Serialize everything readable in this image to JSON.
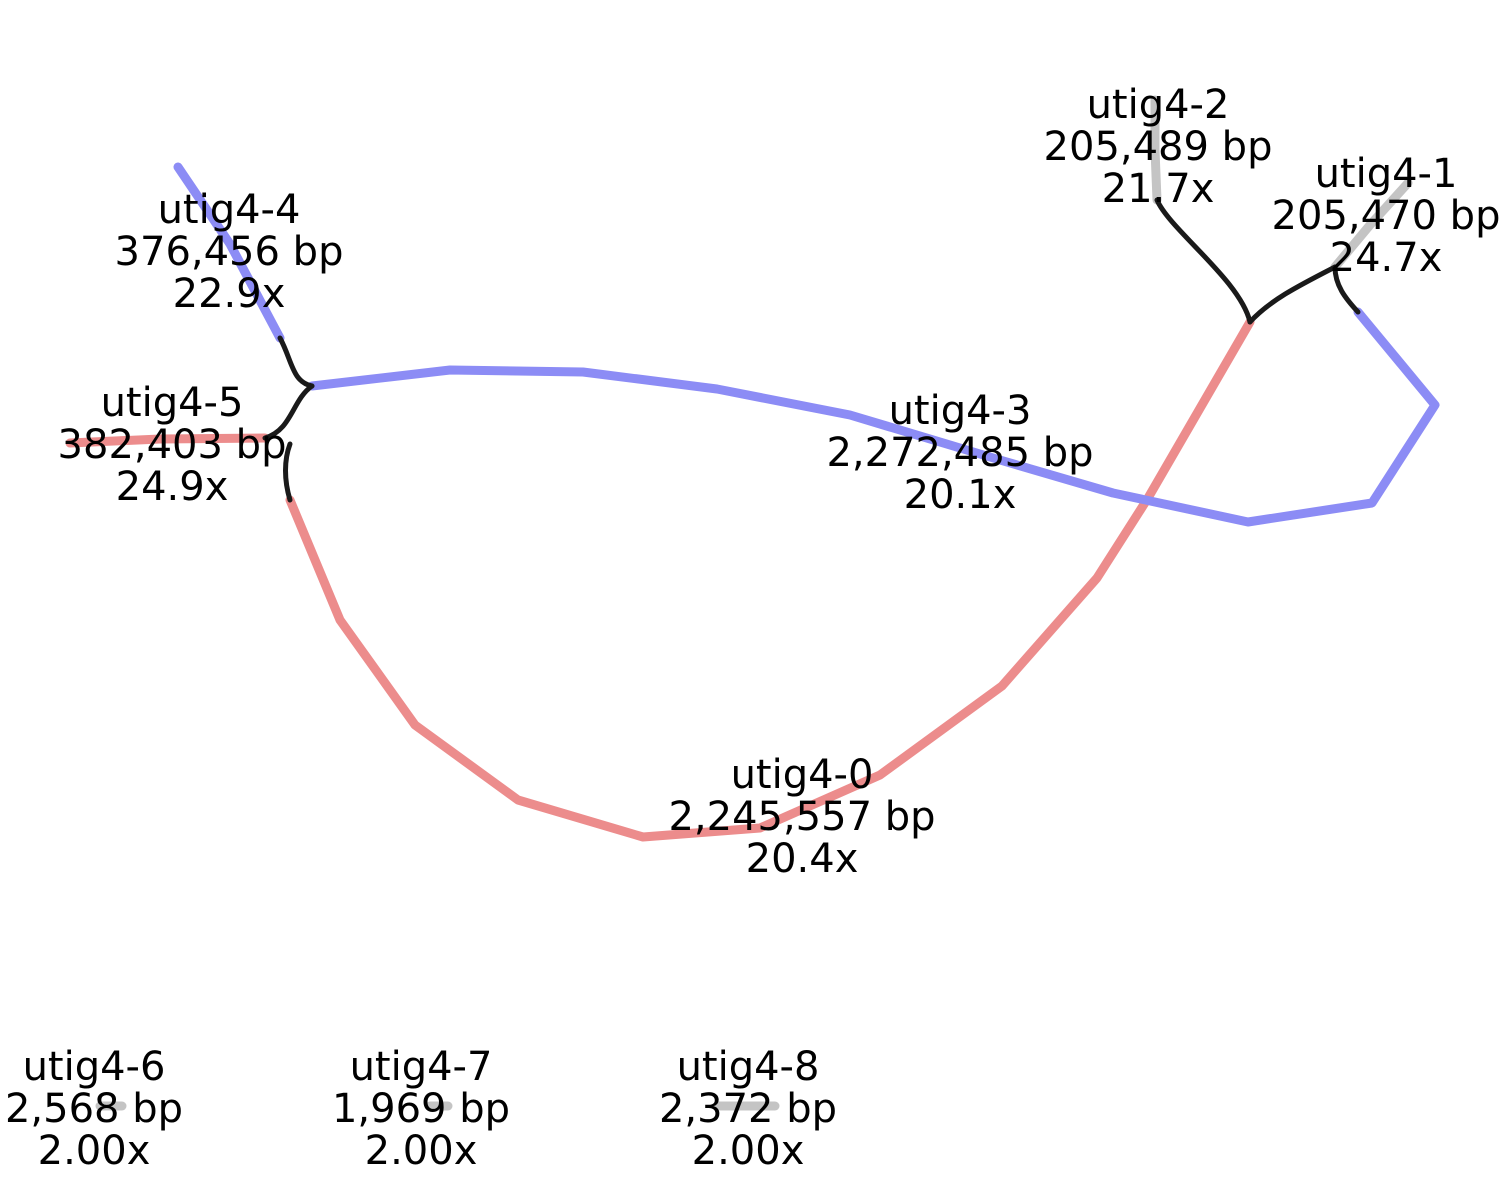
{
  "colors": {
    "blue": "#8c8cf5",
    "red": "#ec8c8c",
    "grey": "#c4c4c4",
    "link": "#1a1a1a"
  },
  "nodes": [
    {
      "id": "utig4-0",
      "name": "utig4-0",
      "length": "2,245,557 bp",
      "depth": "20.4x",
      "color": "red"
    },
    {
      "id": "utig4-1",
      "name": "utig4-1",
      "length": "205,470 bp",
      "depth": "24.7x",
      "color": "grey"
    },
    {
      "id": "utig4-2",
      "name": "utig4-2",
      "length": "205,489 bp",
      "depth": "21.7x",
      "color": "grey"
    },
    {
      "id": "utig4-3",
      "name": "utig4-3",
      "length": "2,272,485 bp",
      "depth": "20.1x",
      "color": "blue"
    },
    {
      "id": "utig4-4",
      "name": "utig4-4",
      "length": "376,456 bp",
      "depth": "22.9x",
      "color": "blue"
    },
    {
      "id": "utig4-5",
      "name": "utig4-5",
      "length": "382,403 bp",
      "depth": "24.9x",
      "color": "red"
    },
    {
      "id": "utig4-6",
      "name": "utig4-6",
      "length": "2,568 bp",
      "depth": "2.00x",
      "color": "grey"
    },
    {
      "id": "utig4-7",
      "name": "utig4-7",
      "length": "1,969 bp",
      "depth": "2.00x",
      "color": "grey"
    },
    {
      "id": "utig4-8",
      "name": "utig4-8",
      "length": "2,372 bp",
      "depth": "2.00x",
      "color": "grey"
    }
  ]
}
